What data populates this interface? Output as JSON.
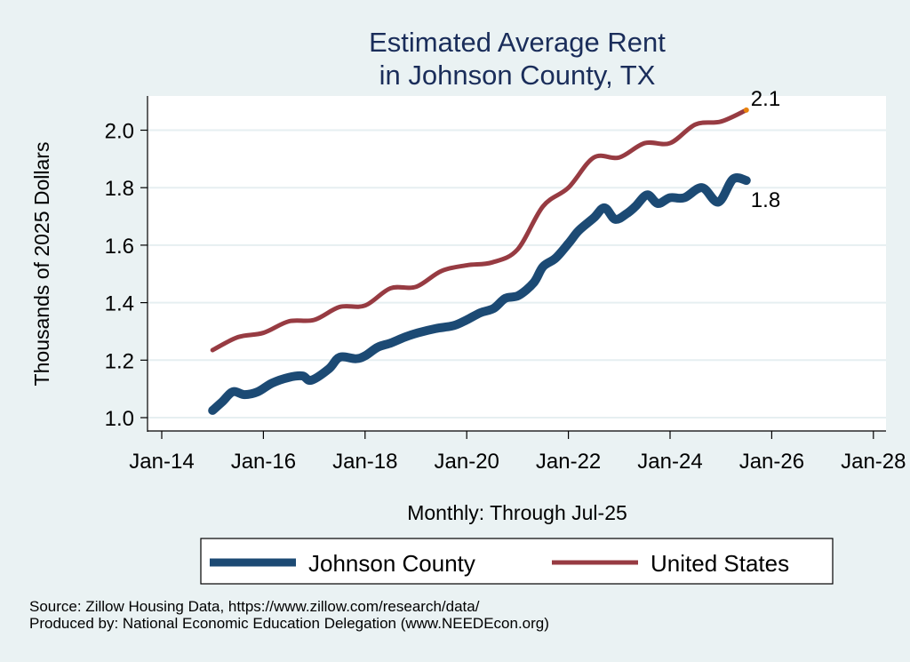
{
  "chart_data": {
    "type": "line",
    "title": [
      "Estimated Average Rent",
      "in Johnson County, TX"
    ],
    "xlabel": "Monthly: Through Jul-25",
    "ylabel": "Thousands of 2025 Dollars",
    "xlim": [
      2013.7,
      2028.1
    ],
    "ylim": [
      0.96,
      2.12
    ],
    "x_ticks": [
      2014,
      2016,
      2018,
      2020,
      2022,
      2024,
      2026,
      2028
    ],
    "x_tick_labels": [
      "Jan-14",
      "Jan-16",
      "Jan-18",
      "Jan-20",
      "Jan-22",
      "Jan-24",
      "Jan-26",
      "Jan-28"
    ],
    "y_ticks": [
      1.0,
      1.2,
      1.4,
      1.6,
      1.8,
      2.0
    ],
    "y_tick_labels": [
      "1.0",
      "1.2",
      "1.4",
      "1.6",
      "1.8",
      "2.0"
    ],
    "grid": true,
    "legend_position": "bottom",
    "series": [
      {
        "name": "Johnson County",
        "color": "#1c4a74",
        "end_label": "1.8",
        "x": [
          2015.0,
          2015.19,
          2015.4,
          2015.63,
          2015.89,
          2016.17,
          2016.5,
          2016.77,
          2016.94,
          2017.29,
          2017.5,
          2017.82,
          2018.0,
          2018.25,
          2018.51,
          2018.78,
          2019.04,
          2019.39,
          2019.74,
          2020.0,
          2020.27,
          2020.53,
          2020.76,
          2021.02,
          2021.32,
          2021.5,
          2021.75,
          2022.02,
          2022.2,
          2022.5,
          2022.71,
          2022.92,
          2023.15,
          2023.32,
          2023.55,
          2023.76,
          2024.0,
          2024.28,
          2024.63,
          2024.95,
          2025.24,
          2025.5
        ],
        "values": [
          1.025,
          1.055,
          1.09,
          1.08,
          1.09,
          1.12,
          1.14,
          1.145,
          1.13,
          1.17,
          1.21,
          1.205,
          1.215,
          1.245,
          1.26,
          1.28,
          1.295,
          1.31,
          1.32,
          1.34,
          1.365,
          1.38,
          1.415,
          1.425,
          1.47,
          1.525,
          1.555,
          1.61,
          1.65,
          1.695,
          1.73,
          1.69,
          1.71,
          1.735,
          1.775,
          1.745,
          1.765,
          1.765,
          1.8,
          1.75,
          1.83,
          1.825
        ]
      },
      {
        "name": "United States",
        "color": "#973b42",
        "end_label": "2.1",
        "end_marker_color": "#e8820c",
        "x": [
          2015.0,
          2015.5,
          2016.0,
          2016.5,
          2017.0,
          2017.5,
          2018.0,
          2018.5,
          2019.0,
          2019.5,
          2020.0,
          2020.5,
          2021.0,
          2021.5,
          2022.0,
          2022.5,
          2023.0,
          2023.5,
          2024.0,
          2024.5,
          2025.0,
          2025.5
        ],
        "values": [
          1.235,
          1.28,
          1.295,
          1.335,
          1.34,
          1.385,
          1.39,
          1.45,
          1.455,
          1.51,
          1.53,
          1.54,
          1.585,
          1.735,
          1.8,
          1.905,
          1.905,
          1.955,
          1.955,
          2.02,
          2.03,
          2.07
        ]
      }
    ]
  },
  "notes": {
    "source": "Source: Zillow Housing Data, https://www.zillow.com/research/data/",
    "producer": "Produced by: National Economic Education Delegation (www.NEEDEcon.org)"
  }
}
